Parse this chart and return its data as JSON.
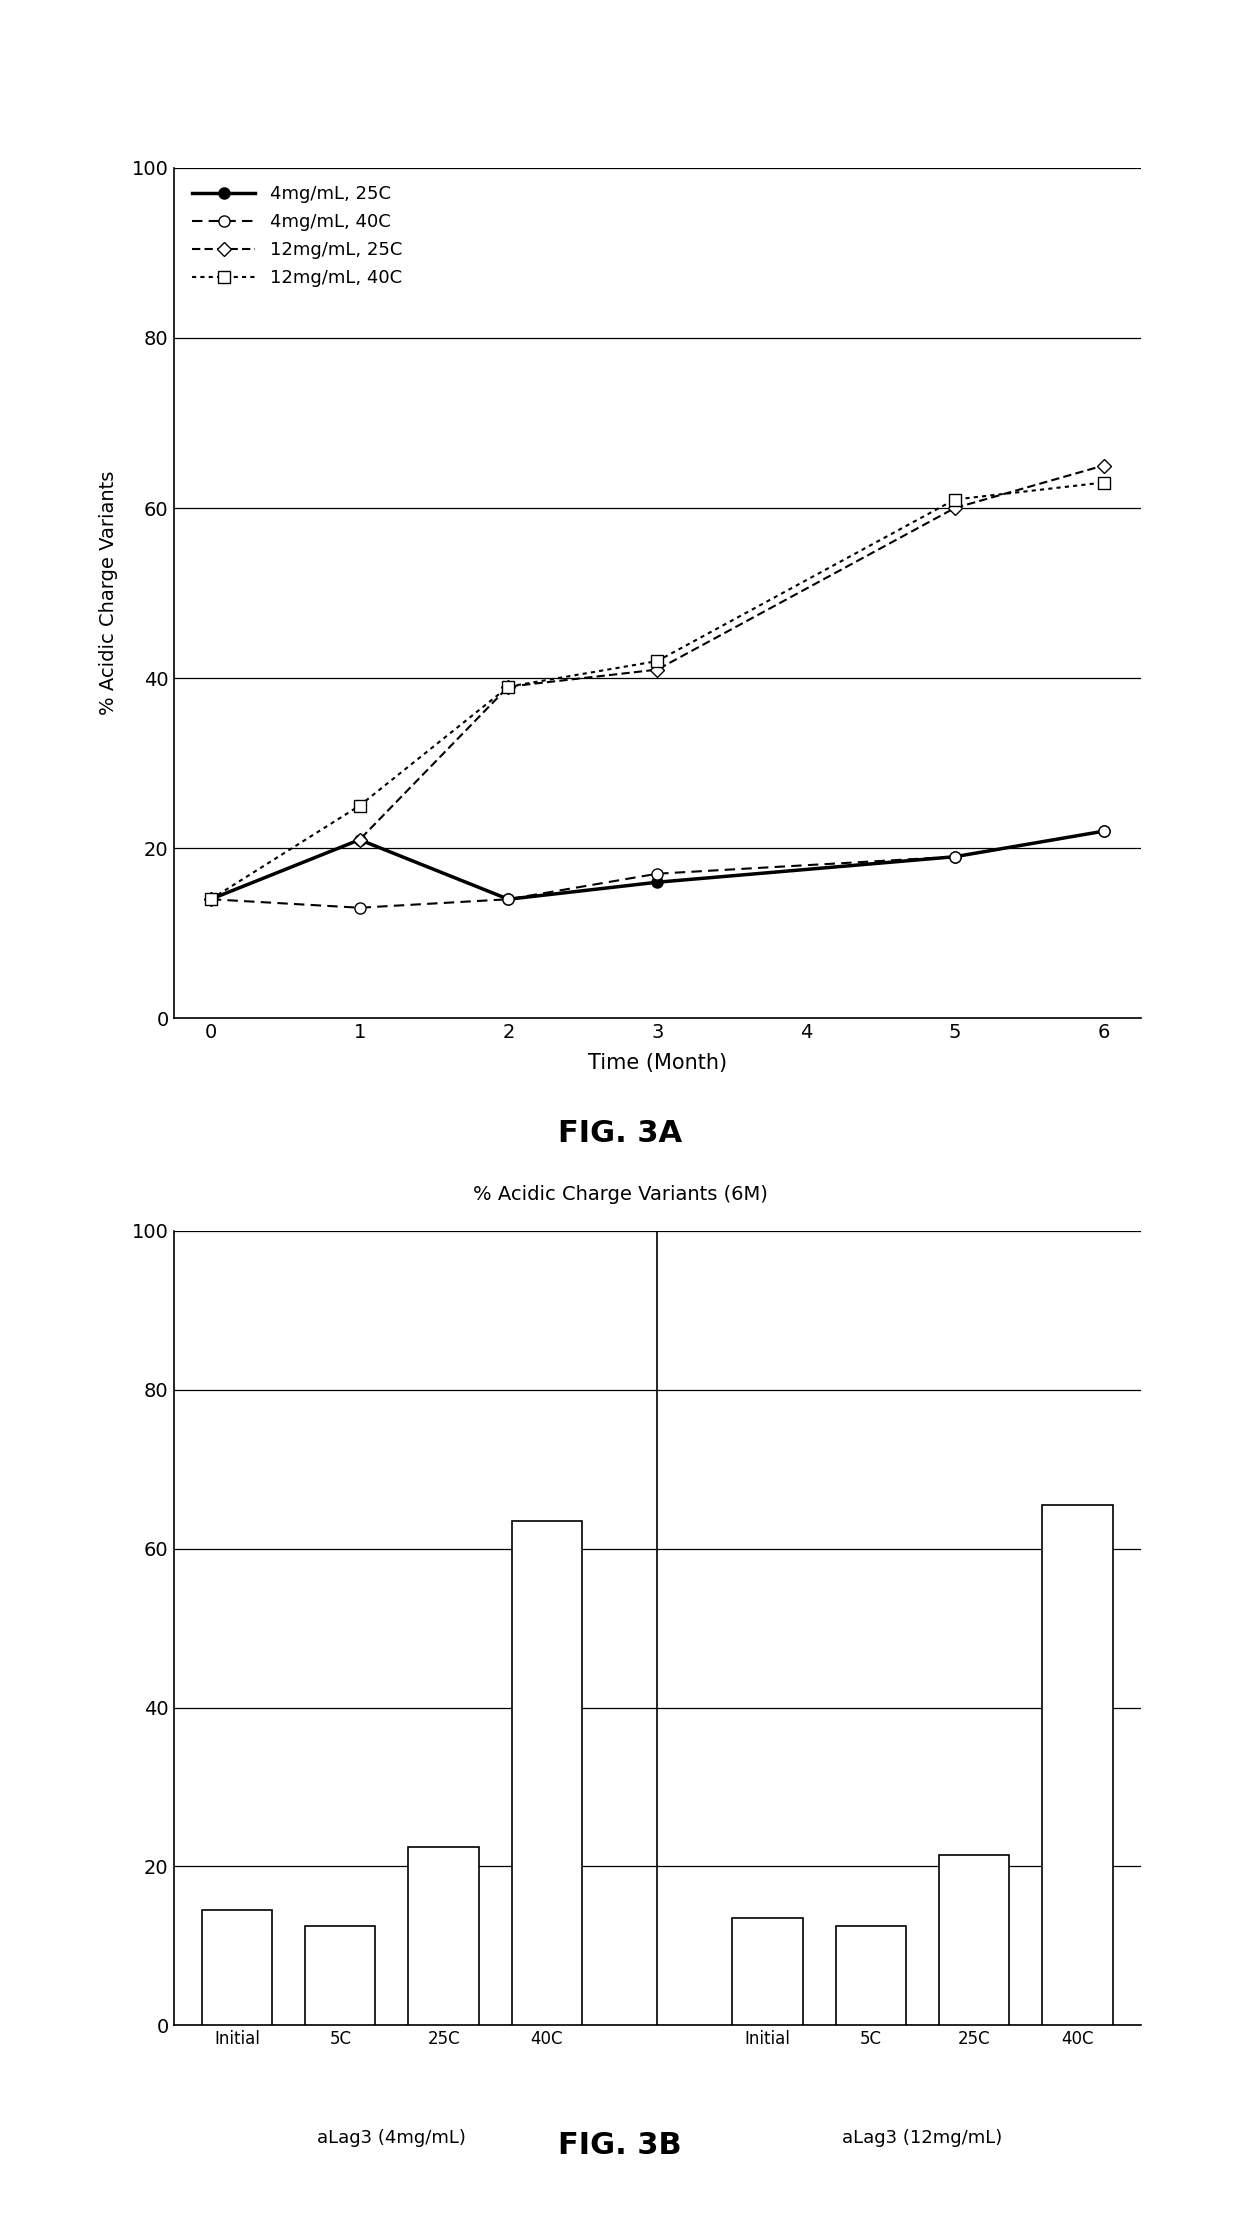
{
  "fig3a": {
    "title": "FIG. 3A",
    "ylabel": "% Acidic Charge Variants",
    "xlabel": "Time (Month)",
    "ylim": [
      0,
      100
    ],
    "xticks": [
      0,
      1,
      2,
      3,
      4,
      5,
      6
    ],
    "yticks": [
      0,
      20,
      40,
      60,
      80,
      100
    ],
    "series": [
      {
        "label": "4mg/mL, 25C",
        "x": [
          0,
          1,
          2,
          3,
          5,
          6
        ],
        "y": [
          14,
          21,
          14,
          16,
          19,
          22
        ]
      },
      {
        "label": "4mg/mL, 40C",
        "x": [
          0,
          1,
          2,
          3,
          5,
          6
        ],
        "y": [
          14,
          13,
          14,
          17,
          19,
          22
        ]
      },
      {
        "label": "12mg/mL, 25C",
        "x": [
          0,
          1,
          2,
          3,
          5,
          6
        ],
        "y": [
          14,
          21,
          39,
          41,
          60,
          65
        ]
      },
      {
        "label": "12mg/mL, 40C",
        "x": [
          0,
          1,
          2,
          3,
          5,
          6
        ],
        "y": [
          14,
          25,
          39,
          42,
          61,
          63
        ]
      }
    ]
  },
  "fig3b": {
    "title": "FIG. 3B",
    "chart_title": "% Acidic Charge Variants (6M)",
    "ylim": [
      0,
      100
    ],
    "yticks": [
      0,
      20,
      40,
      60,
      80,
      100
    ],
    "groups": [
      {
        "group_label": "aLag3 (4mg/mL)",
        "bars": [
          {
            "label": "Initial",
            "value": 14.5
          },
          {
            "label": "5C",
            "value": 12.5
          },
          {
            "label": "25C",
            "value": 22.5
          },
          {
            "label": "40C",
            "value": 63.5
          }
        ]
      },
      {
        "group_label": "aLag3 (12mg/mL)",
        "bars": [
          {
            "label": "Initial",
            "value": 13.5
          },
          {
            "label": "5C",
            "value": 12.5
          },
          {
            "label": "25C",
            "value": 21.5
          },
          {
            "label": "40C",
            "value": 65.5
          }
        ]
      }
    ]
  },
  "background_color": "#ffffff",
  "text_color": "#000000"
}
